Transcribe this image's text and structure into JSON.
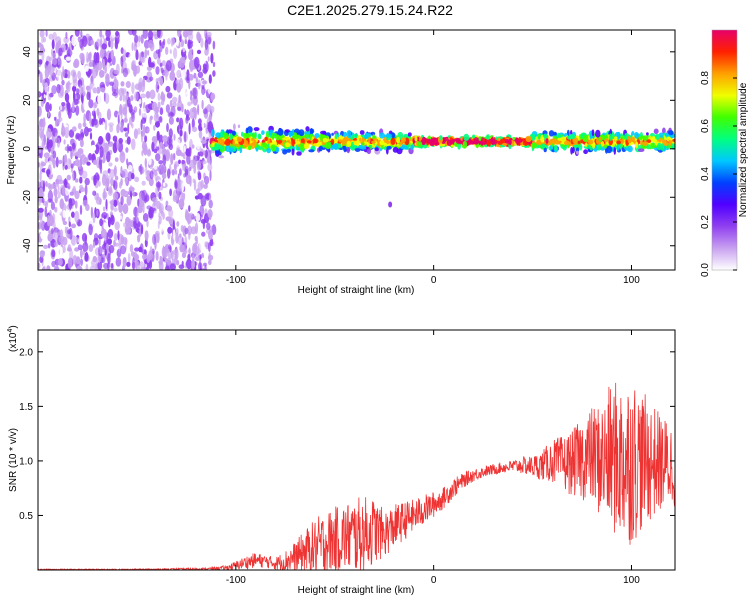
{
  "title": "C2E1.2025.279.15.24.R22",
  "chart_data": [
    {
      "type": "heatmap",
      "title": "C2E1.2025.279.15.24.R22",
      "xlabel": "Height of straight line (km)",
      "ylabel": "Frequency (Hz)",
      "xlim": [
        -200,
        122
      ],
      "ylim": [
        -50,
        49
      ],
      "xticks": [
        {
          "value": -100,
          "label": "-100"
        },
        {
          "value": 0,
          "label": "0"
        },
        {
          "value": 100,
          "label": "100"
        }
      ],
      "yticks": [
        {
          "value": 40,
          "label": "40"
        },
        {
          "value": 20,
          "label": "20"
        },
        {
          "value": 0,
          "label": "0"
        },
        {
          "value": -20,
          "label": "-20"
        },
        {
          "value": -40,
          "label": "-40"
        }
      ],
      "noise_region": {
        "x_from": -200,
        "x_to": -111
      },
      "signal_band": {
        "x_from": -112,
        "x_to": 122,
        "frequency_center_hz": 3,
        "outlier": {
          "x": -22,
          "y": -23
        }
      },
      "colorbar": {
        "label": "Normalized spectral amplitude",
        "range": [
          0.0,
          1.0
        ],
        "ticks": [
          {
            "value": 0.0,
            "label": "0.0"
          },
          {
            "value": 0.2,
            "label": "0.2"
          },
          {
            "value": 0.4,
            "label": "0.4"
          },
          {
            "value": 0.6,
            "label": "0.6"
          },
          {
            "value": 0.8,
            "label": "0.8"
          }
        ],
        "colors": [
          "#ffffff",
          "#c8a0f0",
          "#9040f0",
          "#5000ff",
          "#0040ff",
          "#00c8ff",
          "#00ff80",
          "#40ff00",
          "#f0ff00",
          "#ffa000",
          "#ff2000",
          "#e8006a"
        ]
      }
    },
    {
      "type": "line",
      "xlabel": "Height of straight line (km)",
      "ylabel": "SNR (10 * v/v)",
      "multiplier": "(x10",
      "multiplier_exp": "4",
      "multiplier_close": ")",
      "xlim": [
        -200,
        122
      ],
      "ylim": [
        0,
        2.2
      ],
      "xticks": [
        {
          "value": -100,
          "label": "-100"
        },
        {
          "value": 0,
          "label": "0"
        },
        {
          "value": 100,
          "label": "100"
        }
      ],
      "yticks": [
        {
          "value": 0.5,
          "label": "0.5"
        },
        {
          "value": 1.0,
          "label": "1.0"
        },
        {
          "value": 1.5,
          "label": "1.5"
        },
        {
          "value": 2.0,
          "label": "2.0"
        }
      ],
      "series": [
        {
          "name": "SNR",
          "color": "#ee3333",
          "x": [
            -200,
            -150,
            -115,
            -105,
            -100,
            -95,
            -90,
            -85,
            -80,
            -75,
            -70,
            -65,
            -60,
            -55,
            -50,
            -45,
            -40,
            -35,
            -30,
            -25,
            -20,
            -15,
            -10,
            -5,
            0,
            5,
            10,
            15,
            20,
            25,
            30,
            35,
            40,
            45,
            50,
            55,
            60,
            65,
            70,
            75,
            80,
            85,
            90,
            95,
            100,
            105,
            110,
            115,
            120
          ],
          "mean": [
            0.005,
            0.005,
            0.01,
            0.02,
            0.04,
            0.07,
            0.09,
            0.08,
            0.06,
            0.08,
            0.12,
            0.17,
            0.2,
            0.24,
            0.28,
            0.3,
            0.31,
            0.33,
            0.36,
            0.33,
            0.4,
            0.45,
            0.5,
            0.55,
            0.6,
            0.66,
            0.75,
            0.82,
            0.87,
            0.9,
            0.92,
            0.94,
            0.95,
            0.96,
            0.95,
            0.96,
            1.0,
            0.98,
            0.98,
            1.02,
            1.05,
            1.0,
            1.03,
            1.0,
            1.02,
            1.0,
            1.0,
            0.98,
            0.97
          ],
          "spread": [
            0.005,
            0.005,
            0.01,
            0.02,
            0.04,
            0.06,
            0.07,
            0.06,
            0.06,
            0.1,
            0.14,
            0.2,
            0.27,
            0.3,
            0.3,
            0.32,
            0.35,
            0.35,
            0.3,
            0.22,
            0.2,
            0.18,
            0.15,
            0.14,
            0.12,
            0.1,
            0.09,
            0.07,
            0.06,
            0.05,
            0.05,
            0.05,
            0.06,
            0.08,
            0.1,
            0.14,
            0.2,
            0.25,
            0.3,
            0.38,
            0.45,
            0.55,
            0.7,
            0.75,
            0.8,
            0.65,
            0.55,
            0.45,
            0.4
          ]
        }
      ]
    }
  ]
}
